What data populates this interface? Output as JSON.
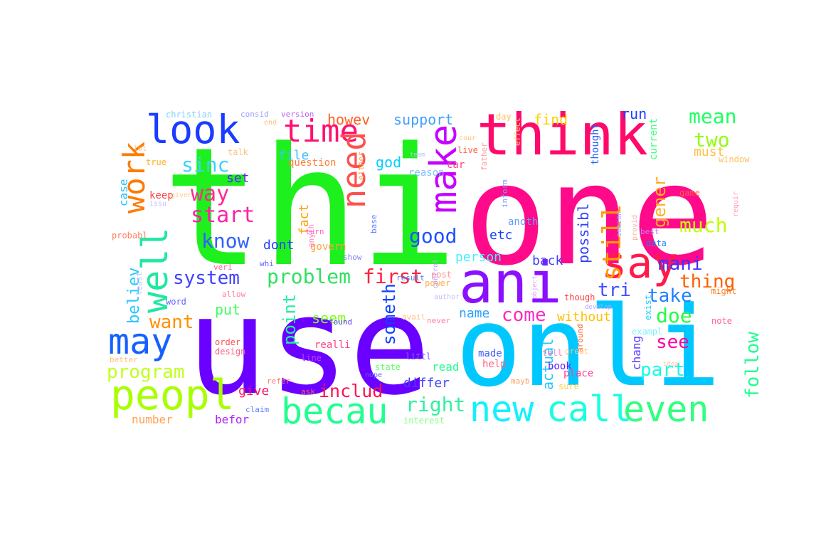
{
  "words": [
    {
      "text": "use",
      "color": "#6a00ff"
    },
    {
      "text": "thi",
      "color": "#1ef01e"
    },
    {
      "text": "one",
      "color": "#ff0a8a"
    },
    {
      "text": "onli",
      "color": "#00c8ff"
    },
    {
      "text": "ani",
      "color": "#8a10ff"
    },
    {
      "text": "think",
      "color": "#ff0a6a"
    },
    {
      "text": "say",
      "color": "#ff1a4a"
    },
    {
      "text": "peopl",
      "color": "#a8ff00"
    },
    {
      "text": "becau",
      "color": "#20ff90"
    },
    {
      "text": "new",
      "color": "#14f0ff"
    },
    {
      "text": "call",
      "color": "#19ffe0"
    },
    {
      "text": "even",
      "color": "#30ff80"
    },
    {
      "text": "look",
      "color": "#1a3cff"
    },
    {
      "text": "time",
      "color": "#ff1070"
    },
    {
      "text": "work",
      "color": "#ff7a00"
    },
    {
      "text": "well",
      "color": "#20e8a0"
    },
    {
      "text": "may",
      "color": "#1560ff"
    },
    {
      "text": "need",
      "color": "#ff5050"
    },
    {
      "text": "make",
      "color": "#c800ff"
    },
    {
      "text": "still",
      "color": "#ff9c00"
    },
    {
      "text": "sinc",
      "color": "#40d0ff"
    },
    {
      "text": "way",
      "color": "#ff2a90"
    },
    {
      "text": "start",
      "color": "#ff20a8"
    },
    {
      "text": "know",
      "color": "#3060ff"
    },
    {
      "text": "system",
      "color": "#4040ff"
    },
    {
      "text": "problem",
      "color": "#30e060"
    },
    {
      "text": "first",
      "color": "#ff2040"
    },
    {
      "text": "program",
      "color": "#c0ff20"
    },
    {
      "text": "want",
      "color": "#ff9000"
    },
    {
      "text": "believ",
      "color": "#20c8ff"
    },
    {
      "text": "right",
      "color": "#30f0a0"
    },
    {
      "text": "includ",
      "color": "#ff1050"
    },
    {
      "text": "good",
      "color": "#2050ff"
    },
    {
      "text": "mean",
      "color": "#20ff60"
    },
    {
      "text": "two",
      "color": "#90ff10"
    },
    {
      "text": "gener",
      "color": "#ffb020"
    },
    {
      "text": "much",
      "color": "#c0ff00"
    },
    {
      "text": "mani",
      "color": "#4030ff"
    },
    {
      "text": "thing",
      "color": "#ff6000"
    },
    {
      "text": "tri",
      "color": "#4050ff"
    },
    {
      "text": "take",
      "color": "#2080ff"
    },
    {
      "text": "doe",
      "color": "#20ff40"
    },
    {
      "text": "see",
      "color": "#ff00a0"
    },
    {
      "text": "part",
      "color": "#10ffe0"
    },
    {
      "text": "follow",
      "color": "#20ff90"
    },
    {
      "text": "come",
      "color": "#ff2ac0"
    },
    {
      "text": "point",
      "color": "#20f0a0"
    },
    {
      "text": "someth",
      "color": "#1040ff"
    },
    {
      "text": "possibl",
      "color": "#3040ff"
    },
    {
      "text": "support",
      "color": "#40a0ff"
    },
    {
      "text": "howev",
      "color": "#ff6020"
    },
    {
      "text": "find",
      "color": "#ffd000"
    },
    {
      "text": "run",
      "color": "#2040ff"
    },
    {
      "text": "christian",
      "color": "#80d0ff"
    },
    {
      "text": "file",
      "color": "#40c0ff"
    },
    {
      "text": "god",
      "color": "#00d0ff"
    },
    {
      "text": "etc",
      "color": "#1040ff"
    },
    {
      "text": "person",
      "color": "#40f0ff"
    },
    {
      "text": "back",
      "color": "#4040ff"
    },
    {
      "text": "fact",
      "color": "#ffa000"
    },
    {
      "text": "dont",
      "color": "#2040ff"
    },
    {
      "text": "set",
      "color": "#6020ff"
    },
    {
      "text": "case",
      "color": "#20c0ff"
    },
    {
      "text": "put",
      "color": "#40ff60"
    },
    {
      "text": "seem",
      "color": "#80ff20"
    },
    {
      "text": "name",
      "color": "#30a0ff"
    },
    {
      "text": "without",
      "color": "#ffc000"
    },
    {
      "text": "give",
      "color": "#ff1060"
    },
    {
      "text": "differ",
      "color": "#4040ff"
    },
    {
      "text": "read",
      "color": "#20ff90"
    },
    {
      "text": "number",
      "color": "#ffa050"
    },
    {
      "text": "befor",
      "color": "#b020ff"
    },
    {
      "text": "actual",
      "color": "#20c8ff"
    },
    {
      "text": "chang",
      "color": "#6040ff"
    },
    {
      "text": "must",
      "color": "#ffc040"
    },
    {
      "text": "thought",
      "color": "#2060ff"
    },
    {
      "text": "current",
      "color": "#40ff80"
    },
    {
      "text": "question",
      "color": "#ff8040"
    },
    {
      "text": "reason",
      "color": "#80c0ff"
    },
    {
      "text": "govern",
      "color": "#ffa040"
    },
    {
      "text": "anoth",
      "color": "#60a0ff"
    },
    {
      "text": "inform",
      "color": "#80a0ff"
    },
    {
      "text": "live",
      "color": "#ff6040"
    },
    {
      "text": "car",
      "color": "#ff4080"
    },
    {
      "text": "interest",
      "color": "#80ff80"
    },
    {
      "text": "made",
      "color": "#4060ff"
    },
    {
      "text": "book",
      "color": "#6020ff"
    },
    {
      "text": "place",
      "color": "#ff40a0"
    },
    {
      "text": "exampl",
      "color": "#80f0ff"
    },
    {
      "text": "exist",
      "color": "#20d0ff"
    },
    {
      "text": "around",
      "color": "#ff6020"
    },
    {
      "text": "window",
      "color": "#ffc060"
    },
    {
      "text": "probabl",
      "color": "#ff8060"
    },
    {
      "text": "keep",
      "color": "#ff4040"
    },
    {
      "text": "true",
      "color": "#ffb020"
    },
    {
      "text": "talk",
      "color": "#ffc080"
    },
    {
      "text": "consid",
      "color": "#a0a0ff"
    },
    {
      "text": "version",
      "color": "#c060ff"
    },
    {
      "text": "game",
      "color": "#ff6040"
    },
    {
      "text": "post",
      "color": "#ff9090"
    },
    {
      "text": "power",
      "color": "#ffb050"
    },
    {
      "text": "order",
      "color": "#ff5050"
    },
    {
      "text": "design",
      "color": "#ff6080"
    },
    {
      "text": "word",
      "color": "#6060ff"
    },
    {
      "text": "realli",
      "color": "#ff4080"
    },
    {
      "text": "line",
      "color": "#c040ff"
    },
    {
      "text": "state",
      "color": "#60ff60"
    },
    {
      "text": "help",
      "color": "#ff6080"
    },
    {
      "text": "sure",
      "color": "#ffd040"
    },
    {
      "text": "found",
      "color": "#6040ff"
    },
    {
      "text": "never",
      "color": "#ff80a0"
    },
    {
      "text": "littl",
      "color": "#8060ff"
    },
    {
      "text": "claim",
      "color": "#6080ff"
    },
    {
      "text": "better",
      "color": "#ffc080"
    },
    {
      "text": "ask",
      "color": "#ff6060"
    },
    {
      "text": "refer",
      "color": "#ff8080"
    },
    {
      "text": "whi",
      "color": "#6060ff"
    },
    {
      "text": "veri",
      "color": "#ff60a0"
    },
    {
      "text": "data",
      "color": "#2080ff"
    },
    {
      "text": "might",
      "color": "#ff8020"
    },
    {
      "text": "note",
      "color": "#ff60a0"
    },
    {
      "text": "though",
      "color": "#ff4040"
    },
    {
      "text": "result",
      "color": "#4080ff"
    },
    {
      "text": "either",
      "color": "#ffa040"
    },
    {
      "text": "day",
      "color": "#ffc060"
    },
    {
      "text": "effect",
      "color": "#ffd060"
    },
    {
      "text": "tell",
      "color": "#ff80c0"
    },
    {
      "text": "best",
      "color": "#c080ff"
    },
    {
      "text": "anyth",
      "color": "#ff80c0"
    },
    {
      "text": "turn",
      "color": "#ff60c0"
    },
    {
      "text": "show",
      "color": "#8080ff"
    },
    {
      "text": "least",
      "color": "#c0c0ff"
    },
    {
      "text": "allow",
      "color": "#ff80a0"
    },
    {
      "text": "base",
      "color": "#6080ff"
    },
    {
      "text": "avail",
      "color": "#ffc080"
    },
    {
      "text": "nope",
      "color": "#6060ff"
    },
    {
      "text": "mayb",
      "color": "#ffa060"
    },
    {
      "text": "great",
      "color": "#ffc080"
    },
    {
      "text": "given",
      "color": "#ffd080"
    },
    {
      "text": "issu",
      "color": "#c0c0ff"
    },
    {
      "text": "lot",
      "color": "#ffc080"
    },
    {
      "text": "end",
      "color": "#ffc080"
    },
    {
      "text": "team",
      "color": "#c0c0ff"
    },
    {
      "text": "cour",
      "color": "#ffc080"
    },
    {
      "text": "author",
      "color": "#c0c0ff"
    },
    {
      "text": "control",
      "color": "#c0a0ff"
    },
    {
      "text": "father",
      "color": "#ffa0a0"
    },
    {
      "text": "requir",
      "color": "#ffa0c0"
    },
    {
      "text": "someon",
      "color": "#a0a0ff"
    },
    {
      "text": "provid",
      "color": "#ffb0a0"
    },
    {
      "text": "object",
      "color": "#e0a0ff"
    },
    {
      "text": "idea",
      "color": "#ffc0a0"
    },
    {
      "text": "develop",
      "color": "#c0a0ff"
    }
  ]
}
